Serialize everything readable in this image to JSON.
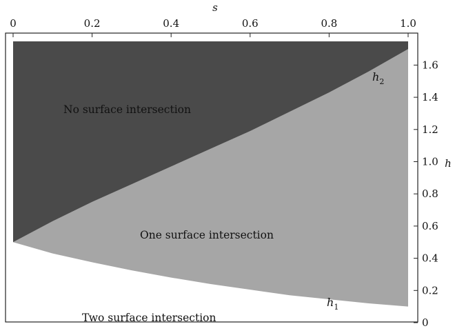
{
  "chart_data": {
    "type": "area",
    "title": "",
    "xlabel": "s",
    "ylabel": "h",
    "xlim": [
      0,
      1.0
    ],
    "ylim": [
      0,
      1.75
    ],
    "x_axis_position": "top",
    "y_axis_position": "right",
    "grid": false,
    "x_ticks": [
      "0",
      "0.2",
      "0.4",
      "0.6",
      "0.8",
      "1.0"
    ],
    "y_ticks": [
      "0",
      "0.2",
      "0.4",
      "0.6",
      "0.8",
      "1.0",
      "1.2",
      "1.4",
      "1.6"
    ],
    "series": [
      {
        "name": "h1",
        "x": [
          0,
          0.1,
          0.2,
          0.3,
          0.4,
          0.5,
          0.6,
          0.7,
          0.8,
          0.9,
          1.0
        ],
        "y": [
          0.5,
          0.43,
          0.375,
          0.325,
          0.28,
          0.24,
          0.205,
          0.17,
          0.145,
          0.12,
          0.1
        ]
      },
      {
        "name": "h2",
        "x": [
          0,
          0.1,
          0.2,
          0.3,
          0.4,
          0.5,
          0.6,
          0.7,
          0.8,
          0.9,
          1.0
        ],
        "y": [
          0.5,
          0.63,
          0.75,
          0.86,
          0.97,
          1.08,
          1.19,
          1.31,
          1.43,
          1.56,
          1.7
        ]
      }
    ],
    "regions": [
      {
        "label": "No surface intersection",
        "color": "#4a4a4a"
      },
      {
        "label": "One surface intersection",
        "color": "#a6a6a6"
      },
      {
        "label": "Two surface intersection",
        "color": "#ffffff"
      }
    ],
    "curve_labels": [
      {
        "base": "h",
        "sub": "2",
        "series": "h2"
      },
      {
        "base": "h",
        "sub": "1",
        "series": "h1"
      }
    ]
  }
}
